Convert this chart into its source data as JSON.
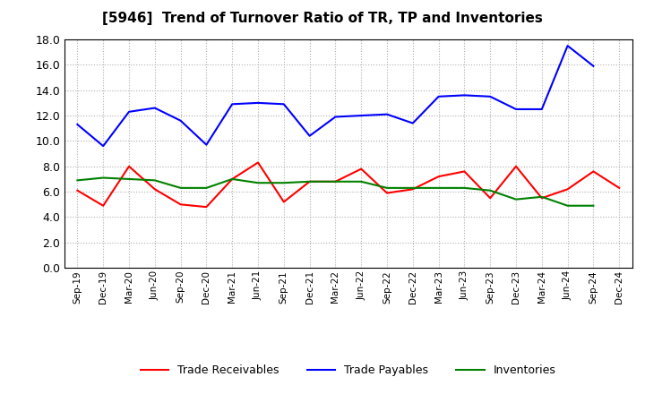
{
  "title": "[5946]  Trend of Turnover Ratio of TR, TP and Inventories",
  "x_labels": [
    "Sep-19",
    "Dec-19",
    "Mar-20",
    "Jun-20",
    "Sep-20",
    "Dec-20",
    "Mar-21",
    "Jun-21",
    "Sep-21",
    "Dec-21",
    "Mar-22",
    "Jun-22",
    "Sep-22",
    "Dec-22",
    "Mar-23",
    "Jun-23",
    "Sep-23",
    "Dec-23",
    "Mar-24",
    "Jun-24",
    "Sep-24",
    "Dec-24"
  ],
  "trade_receivables": [
    6.1,
    4.9,
    8.0,
    6.2,
    5.0,
    4.8,
    7.0,
    8.3,
    5.2,
    6.8,
    6.8,
    7.8,
    5.9,
    6.2,
    7.2,
    7.6,
    5.5,
    8.0,
    5.5,
    6.2,
    7.6,
    6.3
  ],
  "trade_payables": [
    11.3,
    9.6,
    12.3,
    12.6,
    11.6,
    9.7,
    12.9,
    13.0,
    12.9,
    10.4,
    11.9,
    12.0,
    12.1,
    11.4,
    13.5,
    13.6,
    13.5,
    12.5,
    12.5,
    17.5,
    15.9,
    null
  ],
  "inventories": [
    6.9,
    7.1,
    7.0,
    6.9,
    6.3,
    6.3,
    7.0,
    6.7,
    6.7,
    6.8,
    6.8,
    6.8,
    6.3,
    6.3,
    6.3,
    6.3,
    6.1,
    5.4,
    5.6,
    4.9,
    4.9,
    null
  ],
  "ylim": [
    0.0,
    18.0
  ],
  "yticks": [
    0.0,
    2.0,
    4.0,
    6.0,
    8.0,
    10.0,
    12.0,
    14.0,
    16.0,
    18.0
  ],
  "color_tr": "#ff0000",
  "color_tp": "#0000ff",
  "color_inv": "#008000",
  "legend_labels": [
    "Trade Receivables",
    "Trade Payables",
    "Inventories"
  ],
  "background_color": "#ffffff",
  "grid_color": "#b0b0b0"
}
